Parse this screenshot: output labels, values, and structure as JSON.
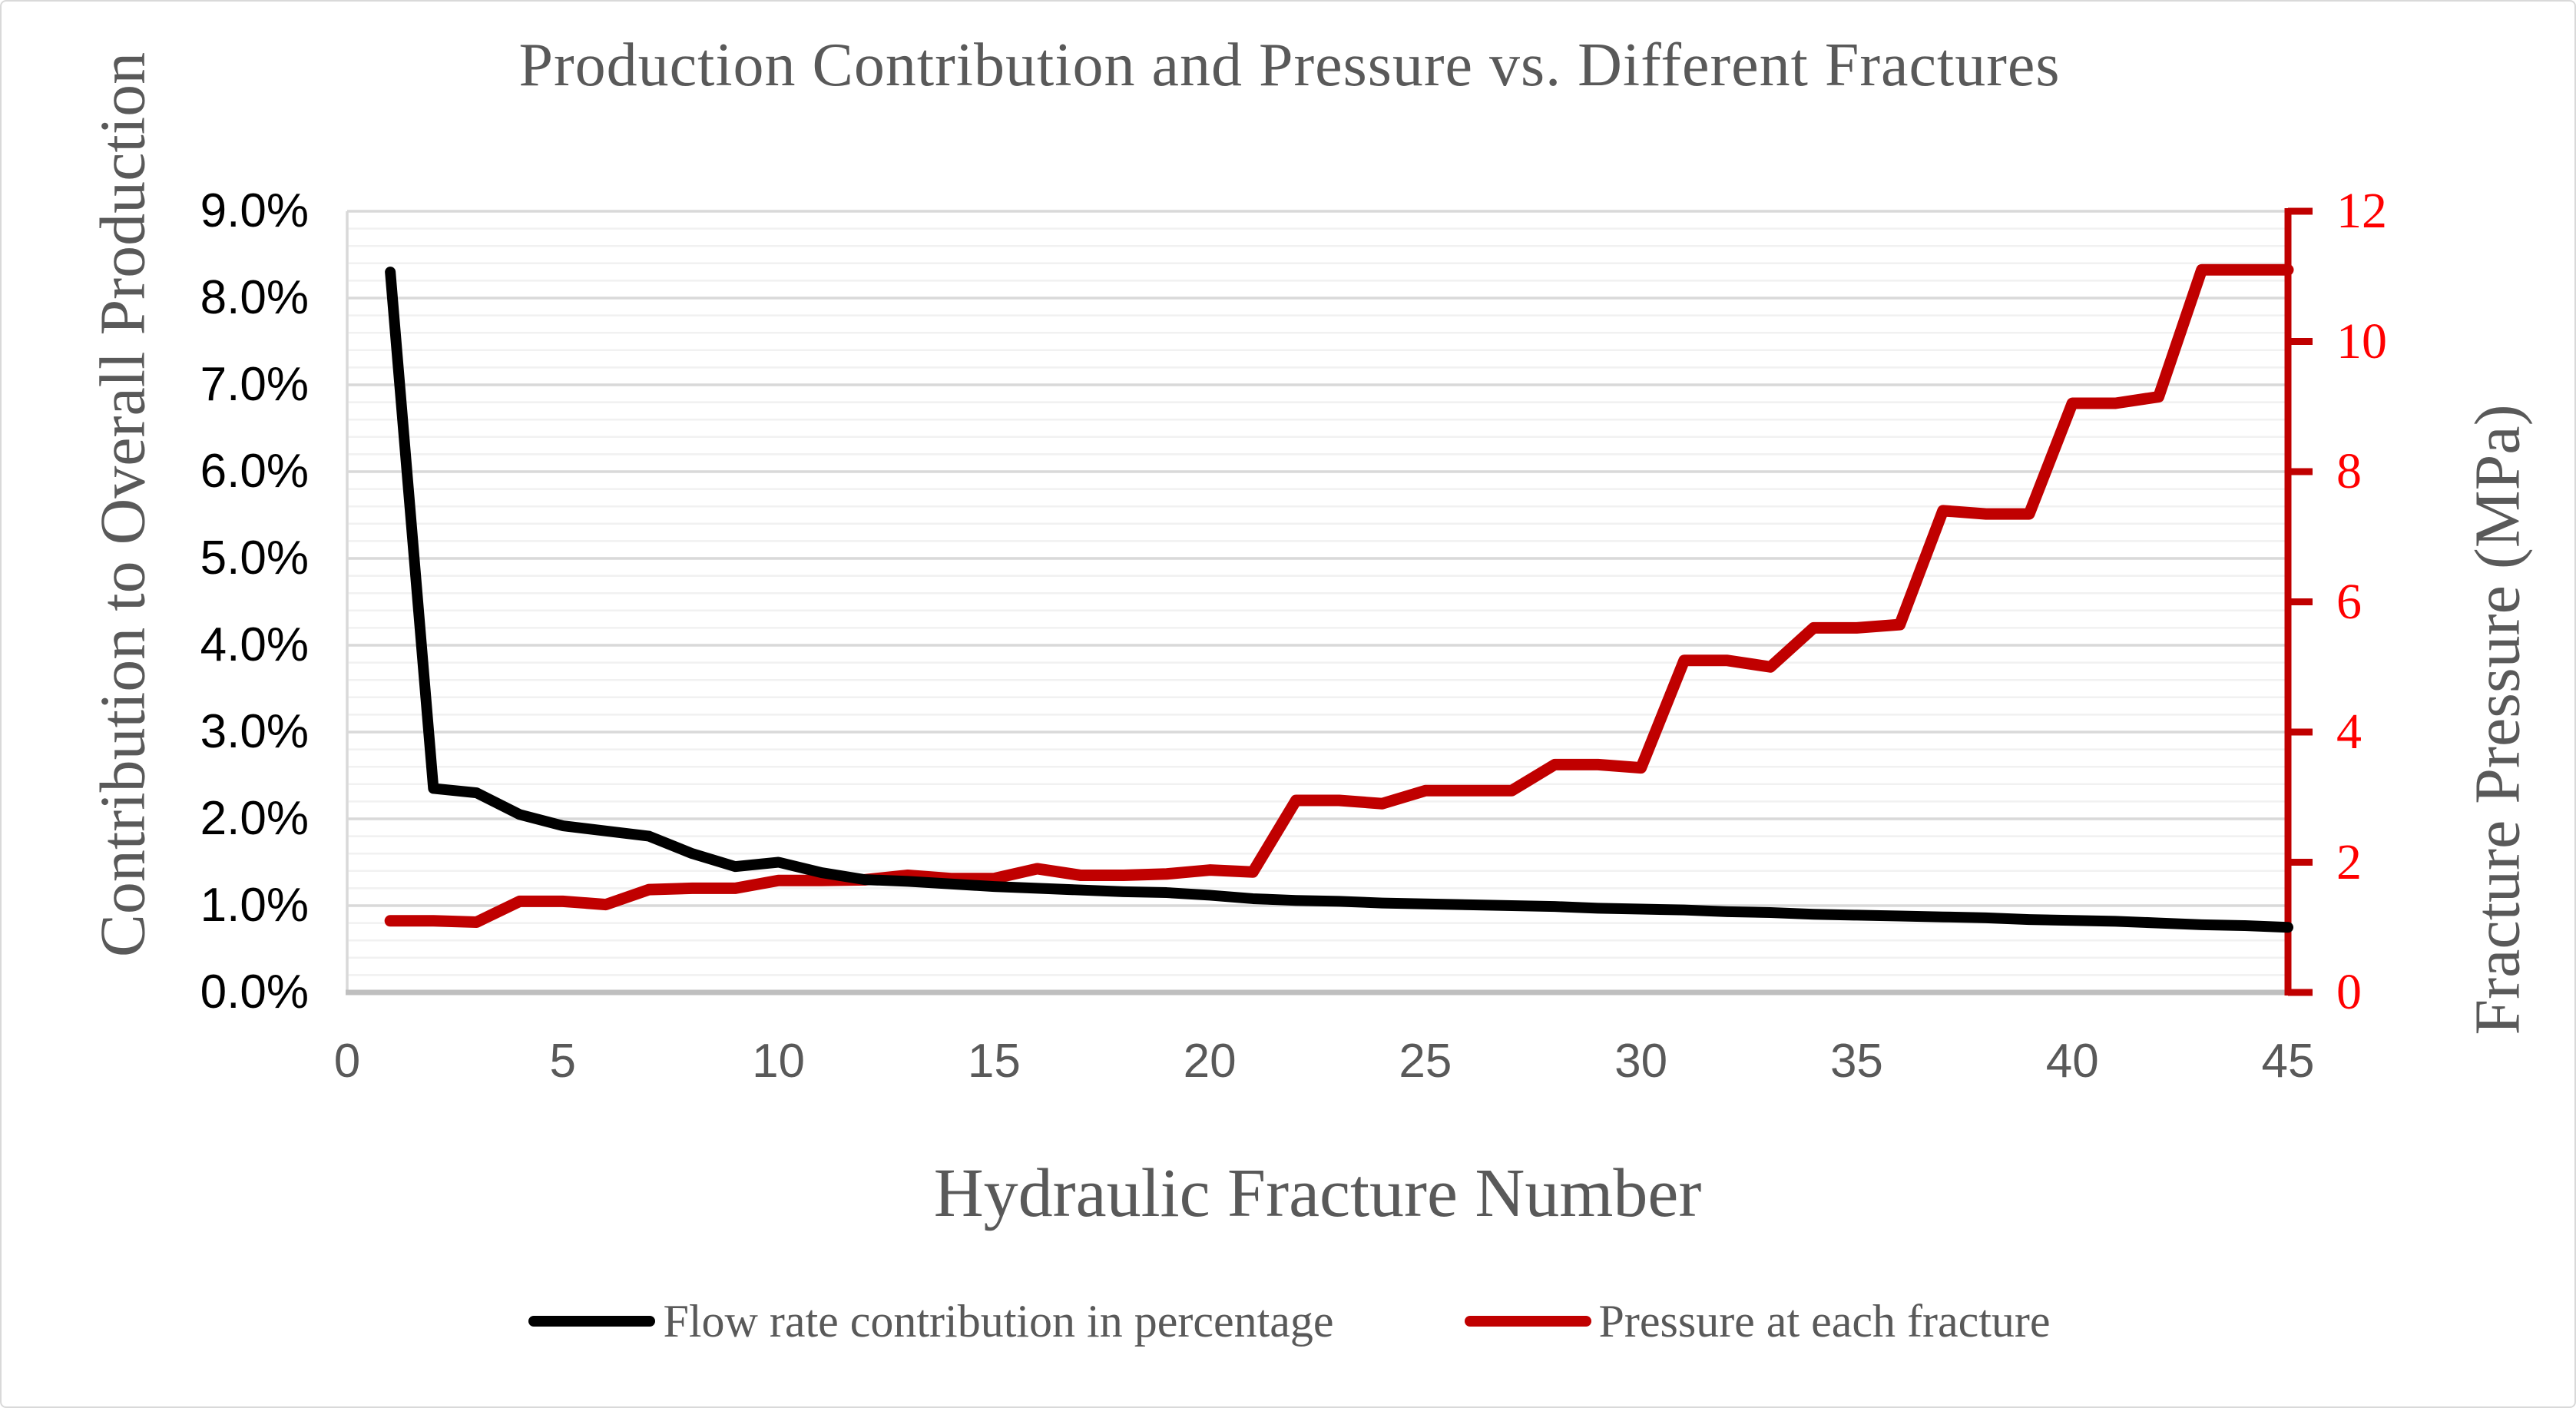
{
  "chart_data": {
    "type": "line",
    "title": "Production Contribution and Pressure vs. Different Fractures",
    "xlabel": "Hydraulic Fracture Number",
    "x_range": [
      0,
      45
    ],
    "x_tick_labels": [
      "0",
      "5",
      "10",
      "15",
      "20",
      "25",
      "30",
      "35",
      "40",
      "45"
    ],
    "x": [
      1,
      2,
      3,
      4,
      5,
      6,
      7,
      8,
      9,
      10,
      11,
      12,
      13,
      14,
      15,
      16,
      17,
      18,
      19,
      20,
      21,
      22,
      23,
      24,
      25,
      26,
      27,
      28,
      29,
      30,
      31,
      32,
      33,
      34,
      35,
      36,
      37,
      38,
      39,
      40,
      41,
      42,
      43,
      44,
      45
    ],
    "left_axis": {
      "label": "Contribution to Overall Production",
      "range": [
        0,
        9
      ],
      "unit": "%",
      "tick_labels": [
        "0.0%",
        "1.0%",
        "2.0%",
        "3.0%",
        "4.0%",
        "5.0%",
        "6.0%",
        "7.0%",
        "8.0%",
        "9.0%"
      ]
    },
    "right_axis": {
      "label": "Fracture Pressure (MPa)",
      "range": [
        0,
        12
      ],
      "unit": "MPa",
      "tick_labels": [
        "0",
        "2",
        "4",
        "6",
        "8",
        "10",
        "12"
      ]
    },
    "grid": {
      "major": "on",
      "minor": "on",
      "minor_step_left_axis_percent": 0.2
    },
    "legend_position": "bottom-center",
    "series": [
      {
        "name": "Flow rate contribution in percentage",
        "axis": "left",
        "unit": "%",
        "color": "#000000",
        "values": [
          8.3,
          2.35,
          2.3,
          2.05,
          1.92,
          1.86,
          1.8,
          1.6,
          1.45,
          1.5,
          1.38,
          1.3,
          1.28,
          1.25,
          1.22,
          1.2,
          1.18,
          1.16,
          1.15,
          1.12,
          1.08,
          1.06,
          1.05,
          1.03,
          1.02,
          1.01,
          1.0,
          0.99,
          0.97,
          0.96,
          0.95,
          0.93,
          0.92,
          0.9,
          0.89,
          0.88,
          0.87,
          0.86,
          0.84,
          0.83,
          0.82,
          0.8,
          0.78,
          0.77,
          0.75
        ]
      },
      {
        "name": "Pressure at each fracture",
        "axis": "right",
        "unit": "MPa",
        "color": "#C00000",
        "values": [
          1.1,
          1.1,
          1.08,
          1.4,
          1.4,
          1.35,
          1.58,
          1.6,
          1.6,
          1.72,
          1.72,
          1.73,
          1.8,
          1.75,
          1.75,
          1.9,
          1.8,
          1.8,
          1.82,
          1.88,
          1.85,
          2.95,
          2.95,
          2.9,
          3.1,
          3.1,
          3.1,
          3.5,
          3.5,
          3.45,
          5.1,
          5.1,
          5.0,
          5.6,
          5.6,
          5.65,
          7.4,
          7.35,
          7.35,
          9.05,
          9.05,
          9.15,
          11.1,
          11.1,
          11.1
        ]
      }
    ],
    "colors": {
      "flow_line": "#000000",
      "pressure_line": "#C00000",
      "right_axis_line": "#C00000",
      "right_tick_label": "#FF0000",
      "left_tick_label": "#000000",
      "x_tick_label": "#595959",
      "titles_text": "#595959",
      "major_gridline": "#D9D9D9",
      "minor_gridline": "#F1F1F1",
      "bottom_axis_line": "#BFBFBF"
    }
  }
}
